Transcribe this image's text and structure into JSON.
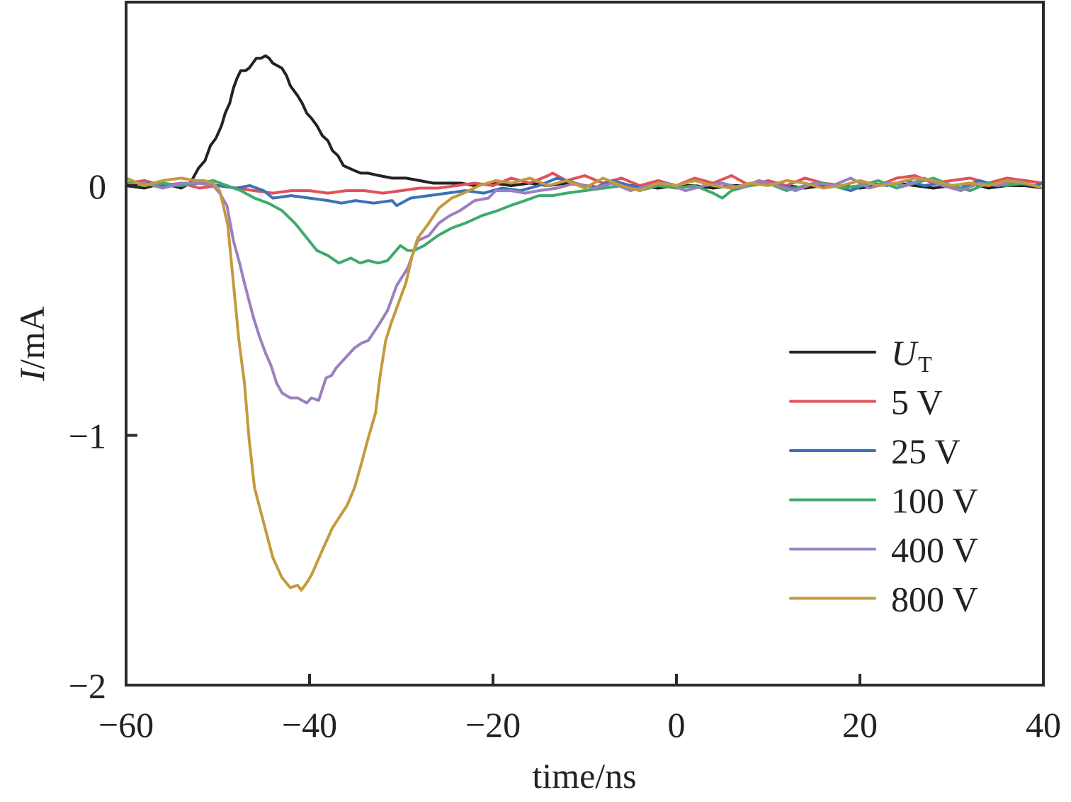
{
  "chart_data": {
    "type": "line",
    "title": "",
    "xlabel": "time/ns",
    "ylabel_italic": "I",
    "ylabel_rest": "/mA",
    "xlim": [
      -60,
      40
    ],
    "ylim": [
      -2,
      0.73
    ],
    "xticks": [
      -60,
      -40,
      -20,
      0,
      20,
      40
    ],
    "xtick_labels": [
      "−60",
      "−40",
      "−20",
      "0",
      "20",
      "40"
    ],
    "yticks": [
      0,
      -1,
      -2
    ],
    "ytick_labels": [
      "0",
      "−1",
      "−2"
    ],
    "grid": false,
    "legend_position": "right-middle",
    "series": [
      {
        "name": "U_T",
        "label_main": "U",
        "label_sub": "T",
        "color": "#222222",
        "x": [
          -60,
          -58,
          -57,
          -56,
          -55,
          -54,
          -53,
          -52.1,
          -51.4,
          -50.8,
          -50.2,
          -49.6,
          -49.2,
          -48.7,
          -48.3,
          -47.9,
          -47.5,
          -47.0,
          -46.6,
          -46.2,
          -45.8,
          -45.3,
          -44.8,
          -44.4,
          -44.0,
          -43.5,
          -43.0,
          -42.5,
          -42.1,
          -41.7,
          -41.3,
          -40.8,
          -40.3,
          -39.8,
          -39.2,
          -38.6,
          -38.0,
          -37.5,
          -36.9,
          -36.3,
          -35.7,
          -35.1,
          -34.4,
          -33.6,
          -32.4,
          -31.0,
          -29.5,
          -28.0,
          -26.5,
          -25.0,
          -23.5,
          -22.0,
          -20.0,
          -18.0,
          -16.0,
          -14.0,
          -12.0,
          -10.0,
          -8.0,
          -6.0,
          -4.0,
          -2.0,
          0,
          2,
          4,
          6,
          8,
          10,
          12,
          14,
          16,
          18,
          20,
          22,
          24,
          26,
          28,
          30,
          32,
          34,
          36,
          38,
          40
        ],
        "y": [
          0.0,
          -0.01,
          0.0,
          -0.01,
          0.0,
          -0.01,
          0.01,
          0.07,
          0.1,
          0.16,
          0.19,
          0.24,
          0.29,
          0.33,
          0.39,
          0.43,
          0.46,
          0.46,
          0.47,
          0.49,
          0.51,
          0.51,
          0.52,
          0.51,
          0.49,
          0.48,
          0.47,
          0.44,
          0.4,
          0.38,
          0.36,
          0.33,
          0.29,
          0.27,
          0.24,
          0.2,
          0.18,
          0.14,
          0.12,
          0.08,
          0.07,
          0.06,
          0.05,
          0.05,
          0.04,
          0.03,
          0.03,
          0.02,
          0.01,
          0.01,
          0.01,
          0.0,
          0.01,
          0.0,
          0.01,
          0.0,
          0.01,
          0.0,
          -0.01,
          0.0,
          0.0,
          -0.01,
          0.0,
          0.0,
          -0.01,
          0.0,
          0.0,
          0.01,
          0.0,
          -0.01,
          0.0,
          0.0,
          -0.01,
          0.0,
          0.01,
          0.0,
          -0.01,
          0.0,
          0.01,
          -0.01,
          0.0,
          0.0,
          -0.01
        ]
      },
      {
        "name": "5 V",
        "label_main": "5 V",
        "label_sub": "",
        "color": "#e0525a",
        "x": [
          -60,
          -58,
          -56,
          -54,
          -52,
          -50,
          -48,
          -46,
          -44,
          -42,
          -40,
          -38,
          -36,
          -34,
          -32,
          -30,
          -28,
          -26,
          -24,
          -22,
          -20,
          -18,
          -16,
          -14,
          -13.5,
          -12,
          -10,
          -8,
          -6,
          -4,
          -2,
          0,
          2,
          4,
          6,
          8,
          10,
          12,
          14,
          16,
          18,
          20,
          22,
          24,
          26,
          28,
          30,
          32,
          34,
          36,
          38,
          40
        ],
        "y": [
          0.01,
          0.02,
          0.0,
          0.01,
          -0.01,
          0.0,
          -0.01,
          -0.02,
          -0.03,
          -0.02,
          -0.02,
          -0.03,
          -0.02,
          -0.02,
          -0.03,
          -0.02,
          -0.01,
          -0.01,
          0.0,
          0.01,
          0.0,
          0.03,
          0.01,
          0.04,
          0.05,
          0.02,
          0.04,
          0.01,
          0.03,
          0.0,
          0.02,
          0.0,
          0.03,
          0.01,
          0.04,
          0.0,
          0.02,
          0.0,
          0.03,
          0.01,
          0.0,
          0.02,
          0.0,
          0.03,
          0.04,
          0.01,
          0.02,
          0.03,
          0.01,
          0.03,
          0.02,
          0.01
        ]
      },
      {
        "name": "25 V",
        "label_main": "25 V",
        "label_sub": "",
        "color": "#3a72b8",
        "x": [
          -60,
          -58,
          -56,
          -54,
          -52,
          -50,
          -48,
          -46.5,
          -45,
          -44,
          -42,
          -40,
          -38,
          -36.5,
          -35,
          -33,
          -31,
          -30.5,
          -29,
          -27,
          -25,
          -23,
          -21,
          -19,
          -17,
          -15,
          -13,
          -11,
          -9,
          -7,
          -5,
          -3,
          -1,
          1,
          3,
          5,
          7,
          9,
          11,
          13,
          15,
          17,
          19,
          21,
          23,
          25,
          27,
          29,
          31,
          33,
          35,
          37,
          39,
          40
        ],
        "y": [
          0.0,
          0.01,
          0.0,
          0.0,
          0.01,
          0.0,
          -0.01,
          0.0,
          -0.02,
          -0.05,
          -0.04,
          -0.05,
          -0.06,
          -0.07,
          -0.06,
          -0.07,
          -0.06,
          -0.08,
          -0.05,
          -0.04,
          -0.03,
          -0.02,
          -0.03,
          -0.01,
          -0.02,
          0.0,
          0.03,
          0.01,
          -0.01,
          0.02,
          0.0,
          -0.01,
          0.01,
          -0.02,
          0.0,
          0.01,
          -0.01,
          0.02,
          0.0,
          -0.01,
          0.01,
          0.0,
          -0.02,
          0.01,
          0.0,
          0.02,
          0.0,
          0.01,
          -0.01,
          0.02,
          0.0,
          0.01,
          0.0,
          0.01
        ]
      },
      {
        "name": "100 V",
        "label_main": "100 V",
        "label_sub": "",
        "color": "#3faa6e",
        "x": [
          -60,
          -58,
          -56,
          -54,
          -52,
          -50.5,
          -49,
          -47.5,
          -46,
          -44.5,
          -43,
          -41.6,
          -40.5,
          -39.2,
          -38,
          -36.8,
          -35.5,
          -34.5,
          -33.6,
          -32.5,
          -31.5,
          -30.1,
          -29.3,
          -28.6,
          -27.5,
          -26,
          -24.5,
          -23,
          -21.2,
          -19.5,
          -18.1,
          -16.5,
          -15,
          -13.5,
          -12,
          -10,
          -8,
          -6,
          -4,
          -2,
          0,
          2,
          4,
          5,
          6,
          8,
          10,
          12,
          14,
          16,
          18,
          20,
          22,
          24,
          26,
          28,
          30,
          32,
          34,
          36,
          38,
          40
        ],
        "y": [
          0.01,
          0.0,
          0.01,
          0.0,
          0.01,
          0.02,
          0.0,
          -0.02,
          -0.05,
          -0.07,
          -0.1,
          -0.15,
          -0.2,
          -0.26,
          -0.28,
          -0.31,
          -0.29,
          -0.31,
          -0.3,
          -0.31,
          -0.3,
          -0.24,
          -0.26,
          -0.26,
          -0.24,
          -0.2,
          -0.17,
          -0.15,
          -0.12,
          -0.1,
          -0.08,
          -0.06,
          -0.04,
          -0.04,
          -0.03,
          -0.02,
          -0.01,
          0.0,
          -0.02,
          0.0,
          -0.01,
          0.0,
          -0.03,
          -0.05,
          -0.02,
          0.0,
          0.01,
          -0.02,
          0.0,
          0.01,
          -0.01,
          0.0,
          0.02,
          -0.01,
          0.01,
          0.03,
          0.0,
          -0.02,
          0.01,
          0.0,
          0.01,
          -0.01
        ]
      },
      {
        "name": "400 V",
        "label_main": "400 V",
        "label_sub": "",
        "color": "#9a80c0",
        "x": [
          -60,
          -58,
          -56,
          -54,
          -52,
          -50.5,
          -49.8,
          -49.0,
          -48.3,
          -47.7,
          -47.1,
          -46.6,
          -46.1,
          -45.5,
          -44.8,
          -44.2,
          -43.6,
          -43.0,
          -42.1,
          -41.3,
          -40.3,
          -39.8,
          -39.0,
          -38.2,
          -37.6,
          -37.1,
          -36.1,
          -35.1,
          -34.3,
          -33.6,
          -32.5,
          -31.5,
          -30.5,
          -29.3,
          -28.2,
          -27.0,
          -25.9,
          -24.7,
          -23.6,
          -22.0,
          -20.5,
          -19.7,
          -18.0,
          -16.5,
          -15.0,
          -13.0,
          -11.0,
          -9,
          -7,
          -5,
          -3,
          -1,
          1,
          3,
          5,
          7,
          9,
          11,
          13,
          15,
          17,
          19,
          21,
          23,
          25,
          27,
          29,
          31,
          33,
          35,
          37,
          39,
          40
        ],
        "y": [
          0.0,
          0.01,
          -0.01,
          0.01,
          0.01,
          0.0,
          -0.03,
          -0.08,
          -0.22,
          -0.3,
          -0.39,
          -0.46,
          -0.53,
          -0.6,
          -0.67,
          -0.72,
          -0.79,
          -0.83,
          -0.85,
          -0.85,
          -0.87,
          -0.85,
          -0.86,
          -0.77,
          -0.76,
          -0.73,
          -0.69,
          -0.65,
          -0.63,
          -0.62,
          -0.56,
          -0.5,
          -0.4,
          -0.33,
          -0.22,
          -0.2,
          -0.15,
          -0.12,
          -0.1,
          -0.06,
          -0.05,
          -0.02,
          -0.02,
          -0.03,
          -0.02,
          -0.01,
          0.01,
          -0.01,
          0.01,
          -0.02,
          0.0,
          0.01,
          -0.02,
          0.0,
          0.01,
          -0.01,
          0.02,
          0.0,
          -0.02,
          0.01,
          0.0,
          0.03,
          -0.01,
          0.01,
          0.0,
          0.03,
          0.0,
          -0.02,
          0.01,
          0.0,
          0.02,
          0.0,
          -0.01
        ]
      },
      {
        "name": "800 V",
        "label_main": "800 V",
        "label_sub": "",
        "color": "#c49a3e",
        "x": [
          -60,
          -58,
          -56,
          -54,
          -52.5,
          -51.5,
          -50.5,
          -49.8,
          -49.4,
          -48.9,
          -48.3,
          -47.7,
          -47.1,
          -46.6,
          -46.0,
          -45.0,
          -44.0,
          -43.0,
          -42.1,
          -41.3,
          -40.9,
          -40.3,
          -39.8,
          -38.6,
          -37.5,
          -35.9,
          -35.1,
          -34.4,
          -33.6,
          -32.8,
          -32.3,
          -31.7,
          -31.1,
          -30.3,
          -29.5,
          -28.8,
          -28.2,
          -27.0,
          -25.9,
          -24.5,
          -23.2,
          -21.5,
          -19.7,
          -18,
          -16,
          -14,
          -12,
          -10,
          -8,
          -6,
          -4,
          -2,
          0,
          2,
          4,
          6,
          8,
          10,
          12,
          14,
          16,
          18,
          20,
          22,
          24,
          26,
          28,
          30,
          32,
          34,
          36,
          38,
          40
        ],
        "y": [
          0.03,
          0.0,
          0.02,
          0.03,
          0.02,
          0.02,
          0.01,
          -0.02,
          -0.08,
          -0.16,
          -0.39,
          -0.62,
          -0.79,
          -1.01,
          -1.21,
          -1.35,
          -1.49,
          -1.57,
          -1.61,
          -1.6,
          -1.62,
          -1.59,
          -1.56,
          -1.46,
          -1.37,
          -1.28,
          -1.21,
          -1.12,
          -1.01,
          -0.91,
          -0.76,
          -0.62,
          -0.55,
          -0.47,
          -0.39,
          -0.28,
          -0.21,
          -0.15,
          -0.09,
          -0.05,
          -0.03,
          0.0,
          0.02,
          0.01,
          0.03,
          0.0,
          0.02,
          -0.01,
          0.03,
          0.0,
          -0.02,
          0.01,
          0.0,
          0.02,
          0.0,
          -0.01,
          0.01,
          0.0,
          0.02,
          0.01,
          -0.01,
          0.0,
          0.02,
          0.0,
          0.01,
          0.03,
          0.02,
          0.0,
          0.01,
          0.0,
          0.02,
          0.01,
          -0.01
        ]
      }
    ]
  }
}
